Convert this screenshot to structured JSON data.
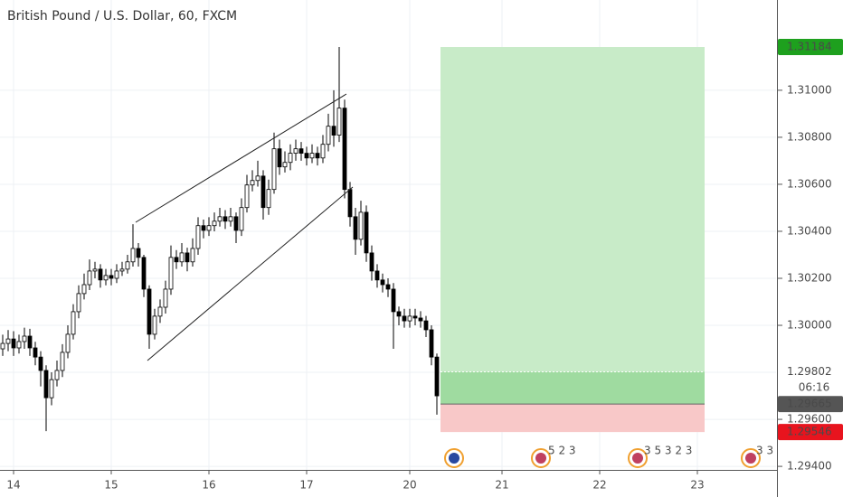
{
  "chart_data": {
    "type": "candlestick",
    "title": "British Pound / U.S. Dollar, 60, FXCM",
    "candles": [
      [
        1.299,
        1.2996,
        1.2987,
        1.29923
      ],
      [
        1.29923,
        1.2998,
        1.2989,
        1.29942
      ],
      [
        1.29942,
        1.29975,
        1.2987,
        1.29904
      ],
      [
        1.29904,
        1.2996,
        1.2988,
        1.29931
      ],
      [
        1.29931,
        1.2999,
        1.299,
        1.29954
      ],
      [
        1.29954,
        1.29985,
        1.2987,
        1.29904
      ],
      [
        1.29904,
        1.2993,
        1.2983,
        1.29865
      ],
      [
        1.29865,
        1.2989,
        1.2974,
        1.29808
      ],
      [
        1.29808,
        1.2983,
        1.2955,
        1.29692
      ],
      [
        1.29692,
        1.298,
        1.2966,
        1.29769
      ],
      [
        1.29769,
        1.2985,
        1.2974,
        1.29808
      ],
      [
        1.29808,
        1.2992,
        1.2978,
        1.29885
      ],
      [
        1.29885,
        1.3,
        1.2986,
        1.29962
      ],
      [
        1.29962,
        1.3009,
        1.2994,
        1.30058
      ],
      [
        1.30058,
        1.3017,
        1.3003,
        1.30135
      ],
      [
        1.30135,
        1.3022,
        1.3011,
        1.30173
      ],
      [
        1.30173,
        1.3028,
        1.3015,
        1.30231
      ],
      [
        1.30231,
        1.3027,
        1.302,
        1.30239
      ],
      [
        1.30239,
        1.3026,
        1.3016,
        1.30193
      ],
      [
        1.30193,
        1.3024,
        1.3017,
        1.30212
      ],
      [
        1.30212,
        1.3024,
        1.3017,
        1.302
      ],
      [
        1.302,
        1.3026,
        1.3018,
        1.30231
      ],
      [
        1.30231,
        1.3027,
        1.3021,
        1.30239
      ],
      [
        1.30239,
        1.303,
        1.3022,
        1.3027
      ],
      [
        1.3027,
        1.3043,
        1.3025,
        1.30327
      ],
      [
        1.30327,
        1.3035,
        1.3025,
        1.30289
      ],
      [
        1.30289,
        1.303,
        1.3012,
        1.30154
      ],
      [
        1.30154,
        1.3017,
        1.299,
        1.29962
      ],
      [
        1.29962,
        1.3007,
        1.2994,
        1.30039
      ],
      [
        1.30039,
        1.3011,
        1.3001,
        1.30077
      ],
      [
        1.30077,
        1.3019,
        1.3005,
        1.30154
      ],
      [
        1.30154,
        1.3034,
        1.3013,
        1.30289
      ],
      [
        1.30289,
        1.3032,
        1.3024,
        1.3027
      ],
      [
        1.3027,
        1.3035,
        1.3025,
        1.30308
      ],
      [
        1.30308,
        1.3033,
        1.3023,
        1.3027
      ],
      [
        1.3027,
        1.3037,
        1.3025,
        1.30327
      ],
      [
        1.30327,
        1.3046,
        1.303,
        1.30424
      ],
      [
        1.30424,
        1.3045,
        1.3037,
        1.30404
      ],
      [
        1.30404,
        1.3046,
        1.3038,
        1.30424
      ],
      [
        1.30424,
        1.3048,
        1.304,
        1.30443
      ],
      [
        1.30443,
        1.305,
        1.3042,
        1.30462
      ],
      [
        1.30462,
        1.3049,
        1.3041,
        1.30443
      ],
      [
        1.30443,
        1.305,
        1.3042,
        1.30462
      ],
      [
        1.30462,
        1.3048,
        1.3035,
        1.30404
      ],
      [
        1.30404,
        1.3054,
        1.3038,
        1.30501
      ],
      [
        1.30501,
        1.3064,
        1.3048,
        1.30597
      ],
      [
        1.30597,
        1.3066,
        1.3057,
        1.30616
      ],
      [
        1.30616,
        1.307,
        1.3059,
        1.30635
      ],
      [
        1.30635,
        1.3066,
        1.3045,
        1.30501
      ],
      [
        1.30501,
        1.3062,
        1.3047,
        1.30578
      ],
      [
        1.30578,
        1.3082,
        1.3056,
        1.30751
      ],
      [
        1.30751,
        1.3079,
        1.3064,
        1.30674
      ],
      [
        1.30674,
        1.3074,
        1.3065,
        1.30693
      ],
      [
        1.30693,
        1.3077,
        1.3066,
        1.30732
      ],
      [
        1.30732,
        1.3079,
        1.307,
        1.30751
      ],
      [
        1.30751,
        1.3078,
        1.307,
        1.30732
      ],
      [
        1.30732,
        1.3076,
        1.3068,
        1.30712
      ],
      [
        1.30712,
        1.3077,
        1.3069,
        1.30732
      ],
      [
        1.30732,
        1.3076,
        1.3068,
        1.30712
      ],
      [
        1.30712,
        1.3081,
        1.3069,
        1.3077
      ],
      [
        1.3077,
        1.309,
        1.3074,
        1.30847
      ],
      [
        1.30847,
        1.31,
        1.3076,
        1.30809
      ],
      [
        1.30809,
        1.31184,
        1.3078,
        1.30924
      ],
      [
        1.30924,
        1.3096,
        1.3054,
        1.30578
      ],
      [
        1.30578,
        1.3061,
        1.3042,
        1.30462
      ],
      [
        1.30462,
        1.305,
        1.303,
        1.30366
      ],
      [
        1.30366,
        1.3053,
        1.3034,
        1.30481
      ],
      [
        1.30481,
        1.3051,
        1.3027,
        1.30308
      ],
      [
        1.30308,
        1.3034,
        1.3019,
        1.30231
      ],
      [
        1.30231,
        1.3026,
        1.3016,
        1.30193
      ],
      [
        1.30193,
        1.3022,
        1.3014,
        1.30173
      ],
      [
        1.30173,
        1.302,
        1.3012,
        1.30154
      ],
      [
        1.30154,
        1.3018,
        1.299,
        1.30058
      ],
      [
        1.30058,
        1.3008,
        1.3,
        1.30039
      ],
      [
        1.30039,
        1.3007,
        1.2999,
        1.30019
      ],
      [
        1.30019,
        1.3007,
        1.2999,
        1.30039
      ],
      [
        1.30039,
        1.3007,
        1.3,
        1.30031
      ],
      [
        1.30031,
        1.3006,
        1.2999,
        1.30019
      ],
      [
        1.30019,
        1.3004,
        1.2995,
        1.29981
      ],
      [
        1.29981,
        1.3,
        1.2983,
        1.29865
      ],
      [
        1.29865,
        1.2988,
        1.2962,
        1.297
      ]
    ],
    "xlim": [
      -0.5,
      142.5
    ],
    "xticks": [
      {
        "value": 2,
        "label": "14"
      },
      {
        "value": 20,
        "label": "15"
      },
      {
        "value": 38,
        "label": "16"
      },
      {
        "value": 56,
        "label": "17"
      },
      {
        "value": 75,
        "label": "20"
      },
      {
        "value": 92,
        "label": "21"
      },
      {
        "value": 110,
        "label": "22"
      },
      {
        "value": 128,
        "label": "23"
      }
    ],
    "ylim": [
      1.29385,
      1.31384
    ],
    "yticks": [
      {
        "value": 1.294,
        "label": "1.29400"
      },
      {
        "value": 1.296,
        "label": "1.29600"
      },
      {
        "value": 1.298,
        "label": "1.29800"
      },
      {
        "value": 1.3,
        "label": "1.30000"
      },
      {
        "value": 1.302,
        "label": "1.30200"
      },
      {
        "value": 1.304,
        "label": "1.30400"
      },
      {
        "value": 1.306,
        "label": "1.30600"
      },
      {
        "value": 1.308,
        "label": "1.30800"
      },
      {
        "value": 1.31,
        "label": "1.31000"
      }
    ],
    "grid": true,
    "up_color": "#ffffff",
    "down_color": "#000000",
    "position": {
      "target": 1.31184,
      "entry": 1.29802,
      "stop": 1.29546
    },
    "last_price": 1.29665,
    "countdown": "06:16",
    "events": [
      "5 2 3",
      "3 5 3 2 3",
      "3 3"
    ]
  }
}
